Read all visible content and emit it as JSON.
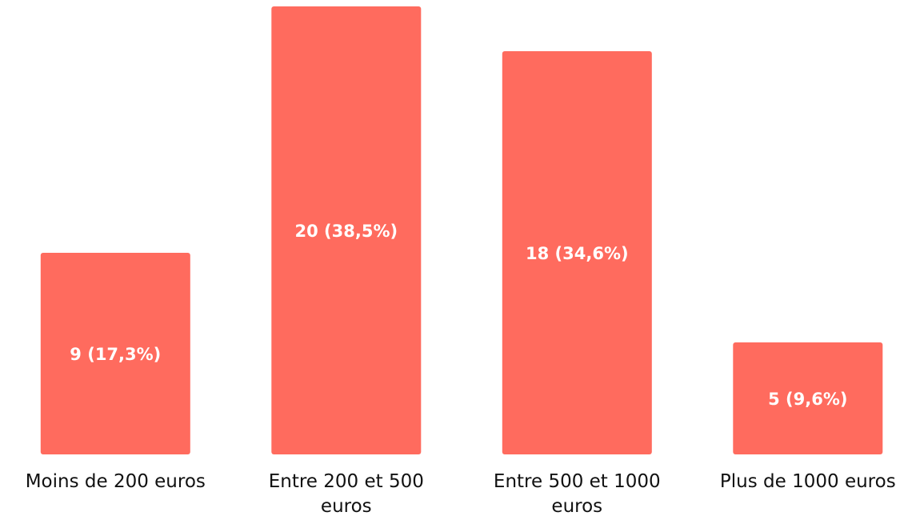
{
  "chart_data": {
    "type": "bar",
    "categories": [
      [
        "Moins de 200 euros"
      ],
      [
        "Entre 200 et 500",
        "euros"
      ],
      [
        "Entre 500 et 1000",
        "euros"
      ],
      [
        "Plus de 1000 euros"
      ]
    ],
    "values": [
      9,
      20,
      18,
      5
    ],
    "data_labels": [
      "9 (17,3%)",
      "20 (38,5%)",
      "18 (34,6%)",
      "5 (9,6%)"
    ],
    "ylim": [
      0,
      20
    ],
    "grid": false,
    "bar_color": "#ff6b5e"
  }
}
